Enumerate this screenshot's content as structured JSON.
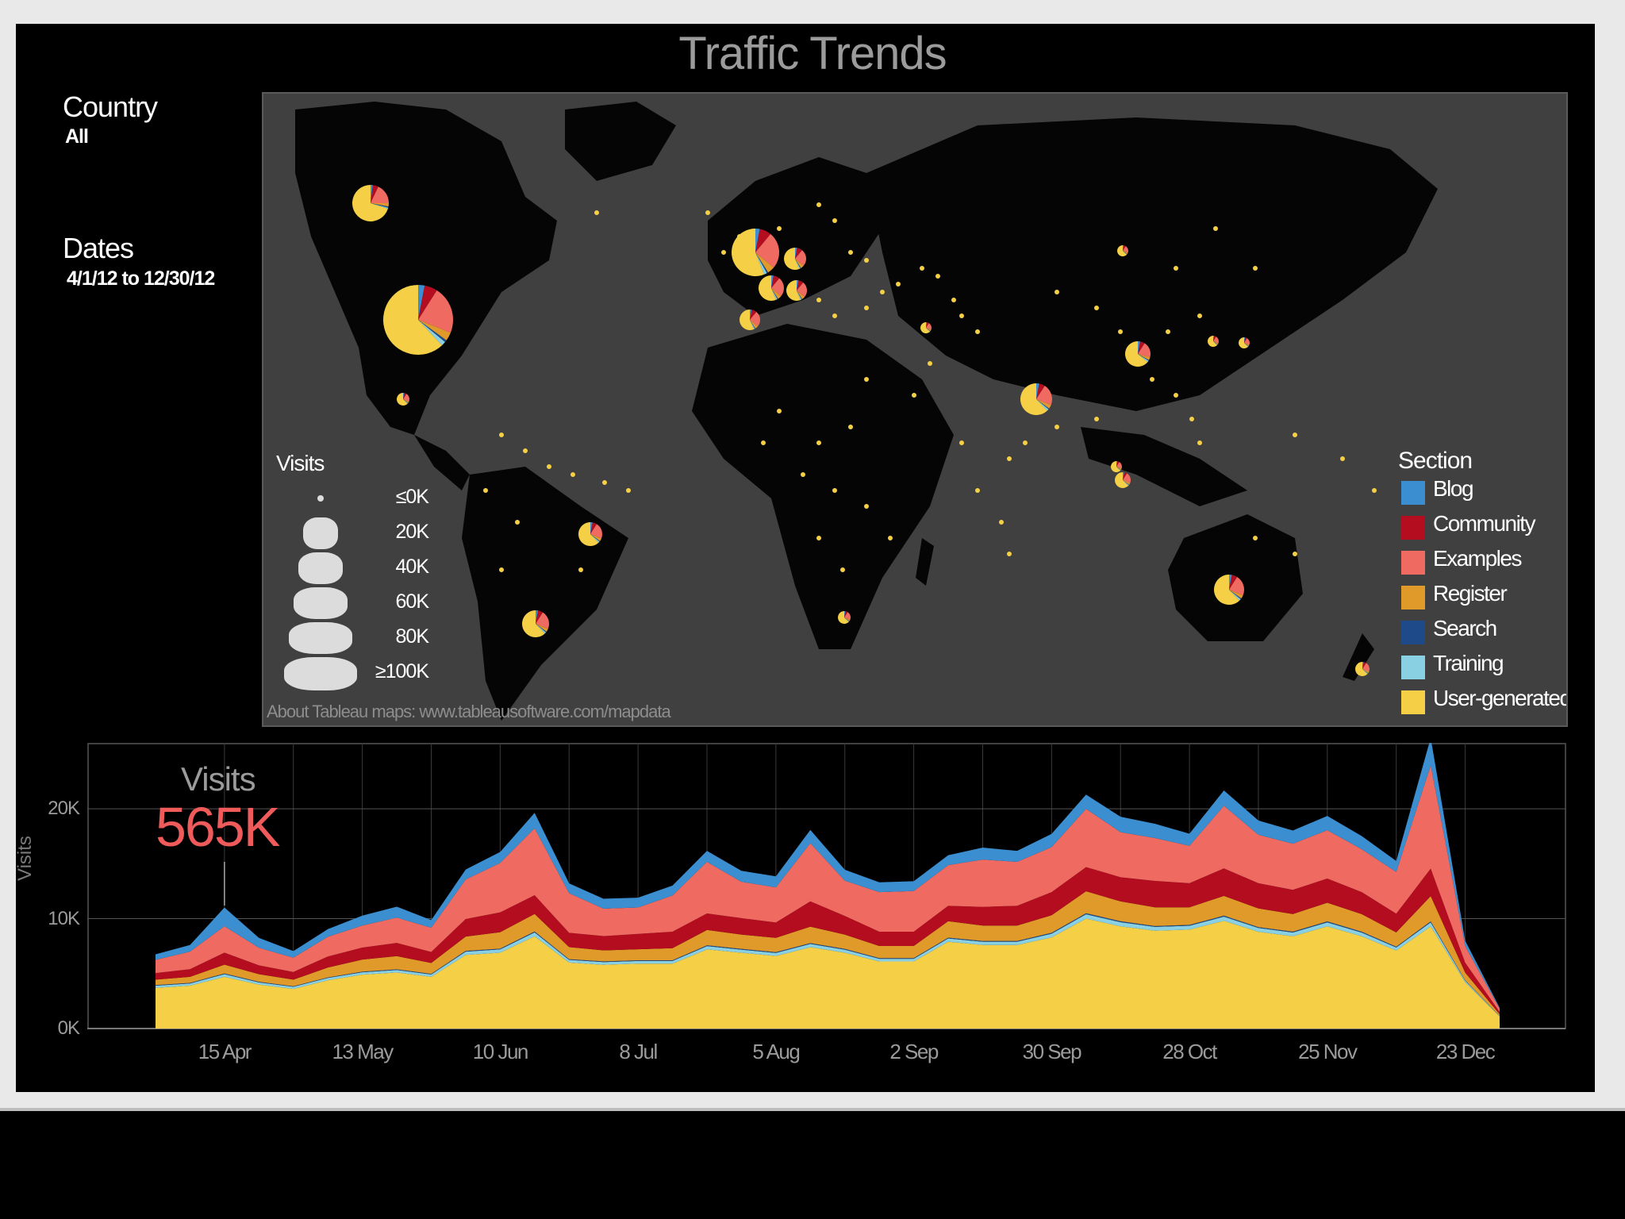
{
  "title": "Traffic Trends",
  "filters": {
    "country_label": "Country",
    "country_value": "All",
    "dates_label": "Dates",
    "dates_value": "4/1/12 to 12/30/12"
  },
  "map": {
    "credit": "About Tableau maps: www.tableausoftware.com/mapdata",
    "size_legend": {
      "title": "Visits",
      "items": [
        "≤0K",
        "20K",
        "40K",
        "60K",
        "80K",
        "≥100K"
      ]
    },
    "section_legend": {
      "title": "Section",
      "items": [
        {
          "label": "Blog",
          "color": "#3b8ed0"
        },
        {
          "label": "Community",
          "color": "#b30d1f"
        },
        {
          "label": "Examples",
          "color": "#ef6b61"
        },
        {
          "label": "Register",
          "color": "#e09a2a"
        },
        {
          "label": "Search",
          "color": "#1f4a8a"
        },
        {
          "label": "Training",
          "color": "#8ad0e3"
        },
        {
          "label": "User-generated",
          "color": "#f5cf45"
        }
      ]
    },
    "background_color": "#404040",
    "land_color": "#050505"
  },
  "kpi": {
    "label": "Visits",
    "value": "565K"
  },
  "chart_data": {
    "type": "area",
    "ylabel": "Visits",
    "ylim": [
      0,
      26000
    ],
    "y_ticks": [
      "0K",
      "10K",
      "20K"
    ],
    "y_tick_values": [
      0,
      10000,
      20000
    ],
    "x_tick_labels": [
      "15 Apr",
      "13 May",
      "10 Jun",
      "8 Jul",
      "5 Aug",
      "2 Sep",
      "30 Sep",
      "28 Oct",
      "25 Nov",
      "23 Dec"
    ],
    "x": [
      "2012-04-01",
      "2012-04-08",
      "2012-04-15",
      "2012-04-22",
      "2012-04-29",
      "2012-05-06",
      "2012-05-13",
      "2012-05-20",
      "2012-05-27",
      "2012-06-03",
      "2012-06-10",
      "2012-06-17",
      "2012-06-24",
      "2012-07-01",
      "2012-07-08",
      "2012-07-15",
      "2012-07-22",
      "2012-07-29",
      "2012-08-05",
      "2012-08-12",
      "2012-08-19",
      "2012-08-26",
      "2012-09-02",
      "2012-09-09",
      "2012-09-16",
      "2012-09-23",
      "2012-09-30",
      "2012-10-07",
      "2012-10-14",
      "2012-10-21",
      "2012-10-28",
      "2012-11-04",
      "2012-11-11",
      "2012-11-18",
      "2012-11-25",
      "2012-12-02",
      "2012-12-09",
      "2012-12-16",
      "2012-12-23",
      "2012-12-30"
    ],
    "series": [
      {
        "name": "User-generated",
        "color": "#f5cf45",
        "values": [
          3700,
          3900,
          4700,
          4000,
          3600,
          4400,
          4900,
          5100,
          4700,
          6700,
          6900,
          8400,
          6000,
          5800,
          5900,
          5900,
          7200,
          6900,
          6600,
          7400,
          6900,
          6100,
          6100,
          7900,
          7600,
          7600,
          8300,
          10000,
          9300,
          8900,
          9000,
          9800,
          8800,
          8400,
          9300,
          8400,
          7100,
          9300,
          4200,
          1100
        ]
      },
      {
        "name": "Training",
        "color": "#8ad0e3",
        "values": [
          200,
          200,
          250,
          200,
          200,
          200,
          220,
          230,
          220,
          300,
          300,
          350,
          250,
          250,
          250,
          250,
          300,
          280,
          280,
          300,
          280,
          250,
          250,
          300,
          300,
          300,
          330,
          400,
          380,
          350,
          350,
          380,
          350,
          340,
          360,
          330,
          280,
          360,
          150,
          40
        ]
      },
      {
        "name": "Search",
        "color": "#1f4a8a",
        "values": [
          50,
          50,
          60,
          50,
          50,
          50,
          50,
          60,
          50,
          70,
          70,
          80,
          60,
          60,
          60,
          60,
          70,
          70,
          70,
          70,
          70,
          60,
          60,
          70,
          70,
          70,
          80,
          90,
          90,
          80,
          80,
          90,
          80,
          80,
          90,
          80,
          70,
          90,
          40,
          10
        ]
      },
      {
        "name": "Register",
        "color": "#e09a2a",
        "values": [
          500,
          550,
          800,
          700,
          600,
          900,
          1100,
          1200,
          1000,
          1300,
          1500,
          1600,
          1100,
          1000,
          1000,
          1100,
          1400,
          1300,
          1300,
          1500,
          1300,
          1100,
          1100,
          1500,
          1400,
          1400,
          1600,
          2000,
          1800,
          1700,
          1600,
          1800,
          1700,
          1600,
          1700,
          1600,
          1300,
          2300,
          700,
          150
        ]
      },
      {
        "name": "Community",
        "color": "#b30d1f",
        "values": [
          600,
          700,
          1100,
          800,
          700,
          1000,
          1100,
          1200,
          1000,
          1600,
          1800,
          1700,
          1300,
          1300,
          1400,
          1500,
          1500,
          1500,
          1400,
          2300,
          1700,
          1300,
          1300,
          1400,
          1700,
          1800,
          2100,
          2200,
          2200,
          2400,
          2200,
          2500,
          2300,
          2200,
          2200,
          2000,
          1700,
          2500,
          900,
          200
        ]
      },
      {
        "name": "Examples",
        "color": "#ef6b61",
        "values": [
          1200,
          1600,
          2400,
          1600,
          1300,
          1800,
          2000,
          2300,
          2200,
          3600,
          4500,
          6100,
          3600,
          2500,
          2400,
          3300,
          4700,
          3300,
          3200,
          5300,
          3200,
          3600,
          3700,
          3700,
          4300,
          4000,
          4100,
          5300,
          4100,
          3900,
          3400,
          5700,
          4400,
          4200,
          4400,
          3900,
          3800,
          9400,
          1500,
          300
        ]
      },
      {
        "name": "Blog",
        "color": "#3b8ed0",
        "values": [
          500,
          600,
          1700,
          900,
          600,
          700,
          900,
          1000,
          700,
          900,
          1000,
          1400,
          900,
          900,
          900,
          900,
          1000,
          1000,
          1000,
          1200,
          1000,
          900,
          900,
          900,
          1100,
          1000,
          1200,
          1300,
          1400,
          1300,
          1100,
          1400,
          1300,
          1200,
          1300,
          1200,
          1000,
          2500,
          500,
          100
        ]
      }
    ]
  }
}
